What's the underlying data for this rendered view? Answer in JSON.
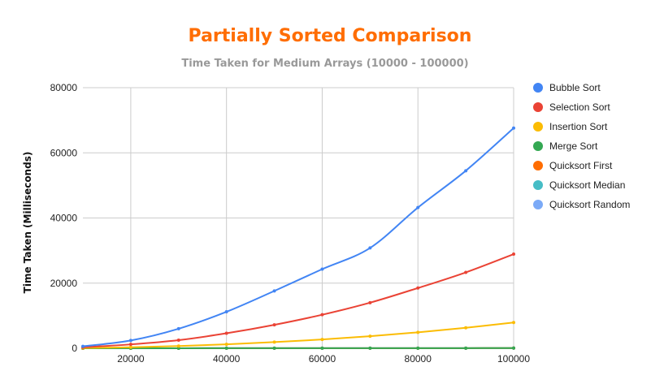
{
  "chart_data": {
    "type": "line",
    "title": "Partially Sorted Comparison",
    "subtitle": "Time Taken for Medium Arrays (10000 - 100000)",
    "xlabel": "",
    "ylabel": "Time Taken (Milliseconds)",
    "xlim": [
      10000,
      100000
    ],
    "ylim": [
      0,
      80000
    ],
    "x_ticks": [
      20000,
      40000,
      60000,
      80000,
      100000
    ],
    "y_ticks": [
      0,
      20000,
      40000,
      60000,
      80000
    ],
    "grid": true,
    "legend_position": "right",
    "x": [
      10000,
      20000,
      30000,
      40000,
      50000,
      60000,
      70000,
      80000,
      90000,
      100000
    ],
    "series": [
      {
        "name": "Bubble Sort",
        "color": "#4285f4",
        "values": [
          600,
          2400,
          6000,
          11200,
          17600,
          24300,
          30800,
          43200,
          54500,
          67600
        ]
      },
      {
        "name": "Selection Sort",
        "color": "#ea4335",
        "values": [
          300,
          1200,
          2500,
          4600,
          7200,
          10300,
          14000,
          18500,
          23300,
          28900
        ]
      },
      {
        "name": "Insertion Sort",
        "color": "#fbbc04",
        "values": [
          100,
          300,
          700,
          1200,
          1900,
          2700,
          3700,
          4900,
          6300,
          7900
        ]
      },
      {
        "name": "Merge Sort",
        "color": "#34a853",
        "values": [
          5,
          10,
          15,
          20,
          25,
          30,
          35,
          40,
          45,
          50
        ]
      },
      {
        "name": "Quicksort First",
        "color": "#ff6d01",
        "values": [
          5,
          10,
          15,
          20,
          25,
          30,
          35,
          40,
          45,
          50
        ]
      },
      {
        "name": "Quicksort Median",
        "color": "#46bdc6",
        "values": [
          5,
          10,
          15,
          20,
          25,
          30,
          35,
          40,
          45,
          50
        ]
      },
      {
        "name": "Quicksort Random",
        "color": "#7baaf7",
        "values": [
          5,
          10,
          15,
          20,
          25,
          30,
          35,
          40,
          45,
          50
        ]
      }
    ]
  },
  "colors": {
    "title": "#ff6d01",
    "subtitle": "#999999",
    "grid": "#cccccc",
    "axis": "#333333"
  }
}
